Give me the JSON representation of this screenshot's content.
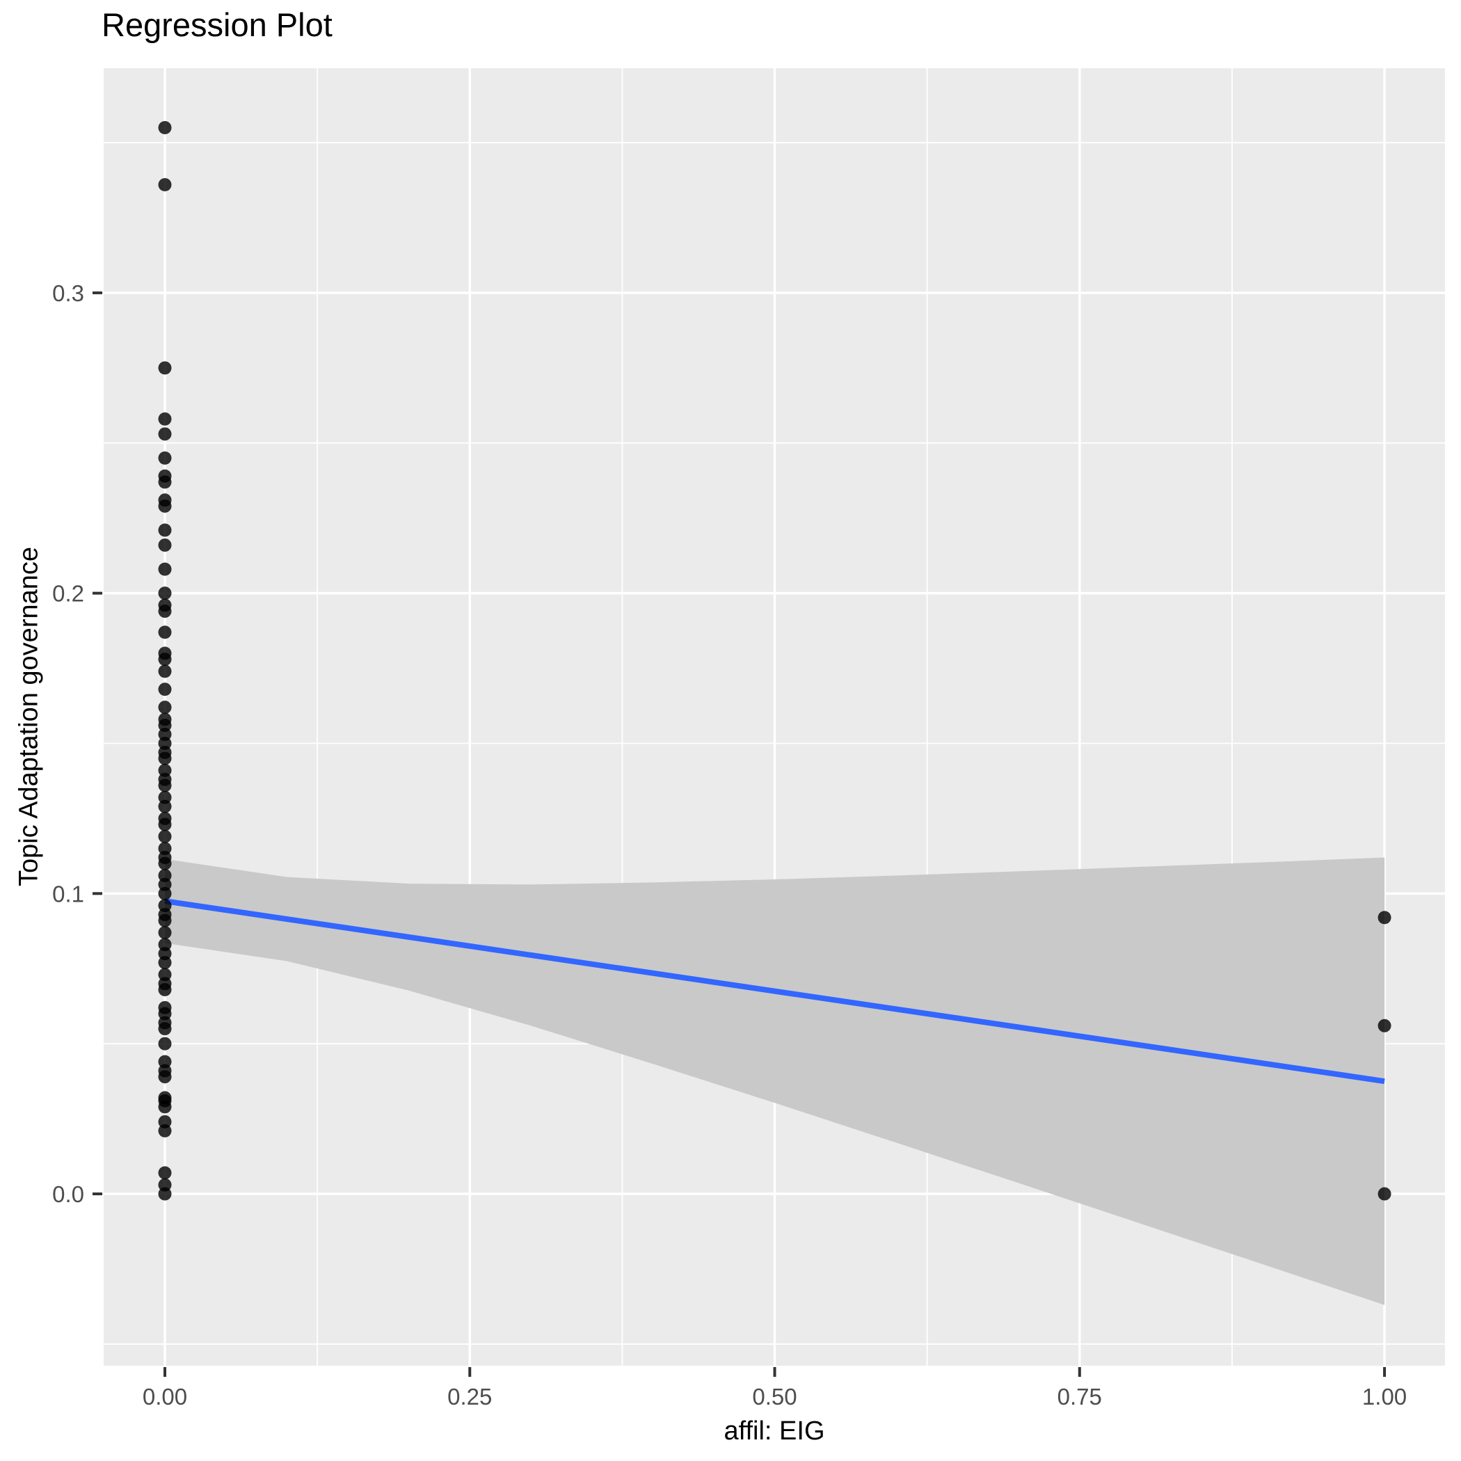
{
  "figure": {
    "title": "Regression Plot"
  },
  "chart_data": {
    "type": "scatter",
    "title": "Regression Plot",
    "xlabel": "affil: EIG",
    "ylabel": "Topic Adaptation governance",
    "legend": "none",
    "grid": true,
    "panel_style": "ggplot-gray",
    "xlim": [
      -0.0502,
      1.0496
    ],
    "ylim": [
      -0.0572,
      0.3748
    ],
    "x_axis": {
      "ticks": [
        {
          "v": 0.0,
          "label": "0.00"
        },
        {
          "v": 0.25,
          "label": "0.25"
        },
        {
          "v": 0.5,
          "label": "0.50"
        },
        {
          "v": 0.75,
          "label": "0.75"
        },
        {
          "v": 1.0,
          "label": "1.00"
        }
      ],
      "minor": [
        0.125,
        0.375,
        0.625,
        0.875
      ]
    },
    "y_axis": {
      "ticks": [
        {
          "v": 0.0,
          "label": "0.0"
        },
        {
          "v": 0.1,
          "label": "0.1"
        },
        {
          "v": 0.2,
          "label": "0.2"
        },
        {
          "v": 0.3,
          "label": "0.3"
        }
      ],
      "minor": [
        -0.05,
        0.05,
        0.15,
        0.25,
        0.35
      ]
    },
    "points": [
      {
        "x": 0,
        "ys": [
          0.355,
          0.336,
          0.275,
          0.258,
          0.253,
          0.245,
          0.239,
          0.237,
          0.231,
          0.229,
          0.221,
          0.216,
          0.208,
          0.2,
          0.196,
          0.194,
          0.187,
          0.18,
          0.178,
          0.174,
          0.168,
          0.162,
          0.158,
          0.156,
          0.153,
          0.15,
          0.147,
          0.145,
          0.141,
          0.138,
          0.136,
          0.132,
          0.129,
          0.125,
          0.123,
          0.119,
          0.115,
          0.112,
          0.11,
          0.106,
          0.103,
          0.1,
          0.096,
          0.093,
          0.091,
          0.087,
          0.083,
          0.08,
          0.077,
          0.073,
          0.07,
          0.068,
          0.062,
          0.06,
          0.057,
          0.055,
          0.05,
          0.044,
          0.041,
          0.039,
          0.032,
          0.031,
          0.029,
          0.024,
          0.021,
          0.007,
          0.003,
          0.0
        ]
      },
      {
        "x": 1,
        "ys": [
          0.092,
          0.056,
          0.0
        ]
      }
    ],
    "regression_line": {
      "x": [
        0,
        1
      ],
      "y": [
        0.0975,
        0.0375
      ]
    },
    "ribbon": {
      "x": [
        0.0,
        0.1,
        0.2,
        0.3,
        0.4,
        0.5,
        0.6,
        0.7,
        0.8,
        0.9,
        1.0
      ],
      "upper": [
        0.1115,
        0.1055,
        0.1033,
        0.103,
        0.1037,
        0.1047,
        0.106,
        0.1074,
        0.1089,
        0.1104,
        0.112
      ],
      "lower": [
        0.0835,
        0.0775,
        0.0677,
        0.056,
        0.0433,
        0.0303,
        0.017,
        0.0036,
        -0.0099,
        -0.0234,
        -0.037
      ]
    },
    "colors": {
      "panel_bg": "#EBEBEB",
      "grid": "#FFFFFF",
      "point": "#000000",
      "point_opacity": 0.8,
      "line": "#3366FF",
      "ribbon": "#C9C9C9",
      "tick_label": "#4D4D4D",
      "tick_mark": "#333333",
      "title": "#000000"
    }
  }
}
